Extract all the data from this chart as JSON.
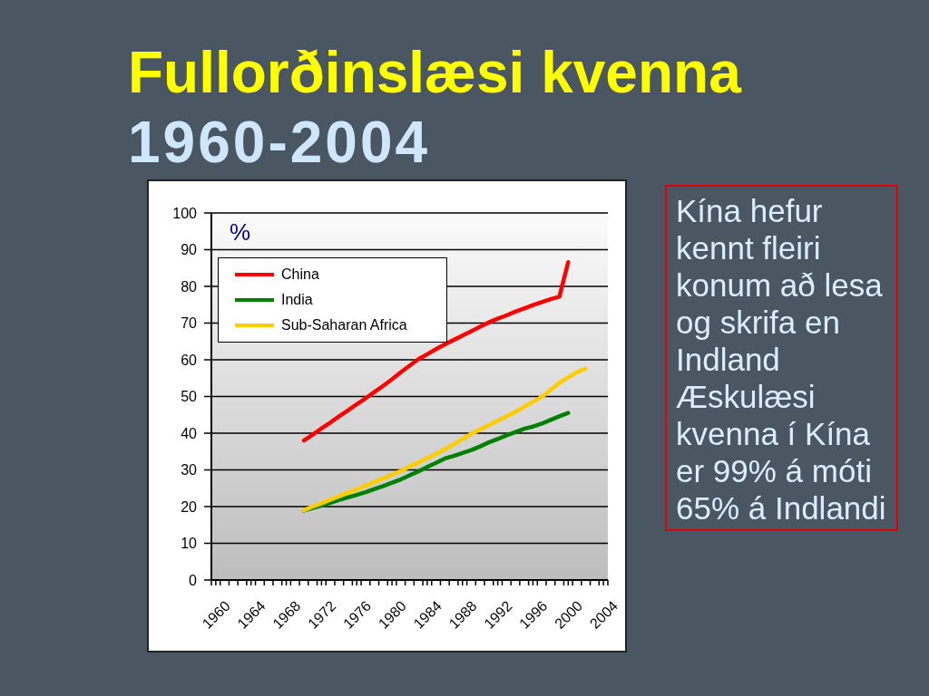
{
  "chart_data": {
    "type": "line",
    "title": "Fullorðinslæsi kvenna",
    "subtitle": "1960-2004",
    "ylabel": "%",
    "x": [
      1970,
      1971,
      1972,
      1973,
      1974,
      1975,
      1976,
      1977,
      1978,
      1979,
      1980,
      1981,
      1982,
      1983,
      1984,
      1985,
      1986,
      1987,
      1988,
      1989,
      1990,
      1991,
      1992,
      1993,
      1994,
      1995,
      1996,
      1997,
      1998,
      1999,
      2000,
      2001,
      2002
    ],
    "series": [
      {
        "name": "China",
        "color": "#ff0000",
        "values": [
          38,
          39.6,
          41.3,
          42.9,
          44.6,
          46.2,
          47.9,
          49.5,
          51.2,
          52.9,
          54.7,
          56.6,
          58.4,
          60.2,
          61.5,
          62.9,
          64.2,
          65.4,
          66.6,
          67.8,
          69,
          70.2,
          71.2,
          72.1,
          73.1,
          74,
          74.9,
          75.7,
          76.5,
          77.2,
          86.6,
          null,
          null
        ]
      },
      {
        "name": "India",
        "color": "#008000",
        "values": [
          18.9,
          19.6,
          20.3,
          21,
          21.8,
          22.5,
          23.2,
          23.9,
          24.8,
          25.6,
          26.5,
          27.4,
          28.5,
          29.6,
          30.8,
          31.9,
          33.1,
          33.8,
          34.6,
          35.4,
          36.4,
          37.5,
          38.4,
          39.4,
          40.3,
          41.2,
          41.8,
          42.6,
          43.6,
          44.6,
          45.5,
          null,
          null
        ]
      },
      {
        "name": "Sub-Saharan Africa",
        "color": "#ffcc00",
        "values": [
          19,
          20,
          20.9,
          21.9,
          22.8,
          23.8,
          24.7,
          25.7,
          26.7,
          27.7,
          28.7,
          29.7,
          30.9,
          32,
          33.2,
          34.3,
          35.6,
          37,
          38.4,
          39.8,
          41,
          42.2,
          43.4,
          44.6,
          45.8,
          47.2,
          48.5,
          49.9,
          51.8,
          53.7,
          55.2,
          56.6,
          57.6
        ]
      }
    ],
    "xlim": [
      1959.5,
      2004.5
    ],
    "xticks": [
      {
        "value": 1959.5,
        "label": null
      },
      1960,
      {
        "value": 1960.5,
        "label": null
      },
      {
        "value": 1961.5,
        "label": null
      },
      {
        "value": 1962.5,
        "label": null
      },
      {
        "value": 1963.5,
        "label": null
      },
      1964,
      {
        "value": 1964.5,
        "label": null
      },
      {
        "value": 1965.5,
        "label": null
      },
      {
        "value": 1966.5,
        "label": null
      },
      {
        "value": 1967.5,
        "label": null
      },
      1968,
      {
        "value": 1968.5,
        "label": null
      },
      {
        "value": 1969.5,
        "label": null
      },
      {
        "value": 1970.5,
        "label": null
      },
      {
        "value": 1971.5,
        "label": null
      },
      1972,
      {
        "value": 1972.5,
        "label": null
      },
      {
        "value": 1973.5,
        "label": null
      },
      {
        "value": 1974.5,
        "label": null
      },
      {
        "value": 1975.5,
        "label": null
      },
      1976,
      {
        "value": 1976.5,
        "label": null
      },
      {
        "value": 1977.5,
        "label": null
      },
      {
        "value": 1978.5,
        "label": null
      },
      {
        "value": 1979.5,
        "label": null
      },
      1980,
      {
        "value": 1980.5,
        "label": null
      },
      {
        "value": 1981.5,
        "label": null
      },
      {
        "value": 1982.5,
        "label": null
      },
      {
        "value": 1983.5,
        "label": null
      },
      1984,
      {
        "value": 1984.5,
        "label": null
      },
      {
        "value": 1985.5,
        "label": null
      },
      {
        "value": 1986.5,
        "label": null
      },
      {
        "value": 1987.5,
        "label": null
      },
      1988,
      {
        "value": 1988.5,
        "label": null
      },
      {
        "value": 1989.5,
        "label": null
      },
      {
        "value": 1990.5,
        "label": null
      },
      {
        "value": 1991.5,
        "label": null
      },
      1992,
      {
        "value": 1992.5,
        "label": null
      },
      {
        "value": 1993.5,
        "label": null
      },
      {
        "value": 1994.5,
        "label": null
      },
      {
        "value": 1995.5,
        "label": null
      },
      1996,
      {
        "value": 1996.5,
        "label": null
      },
      {
        "value": 1997.5,
        "label": null
      },
      {
        "value": 1998.5,
        "label": null
      },
      {
        "value": 1999.5,
        "label": null
      },
      2000,
      {
        "value": 2000.5,
        "label": null
      },
      {
        "value": 2001.5,
        "label": null
      },
      {
        "value": 2002.5,
        "label": null
      },
      {
        "value": 2003.5,
        "label": null
      },
      2004,
      {
        "value": 2004.5,
        "label": null
      }
    ],
    "ylim": [
      0,
      100
    ],
    "yticks": [
      0,
      10,
      20,
      30,
      40,
      50,
      60,
      70,
      80,
      90,
      100
    ],
    "grid": "y",
    "legend": "top left",
    "annotations": [
      "Kína hefur kennt fleiri konum að lesa og skrifa en Indland",
      "Æskulæsi kvenna í Kína er 99% á móti 65% á Indlandi"
    ]
  }
}
